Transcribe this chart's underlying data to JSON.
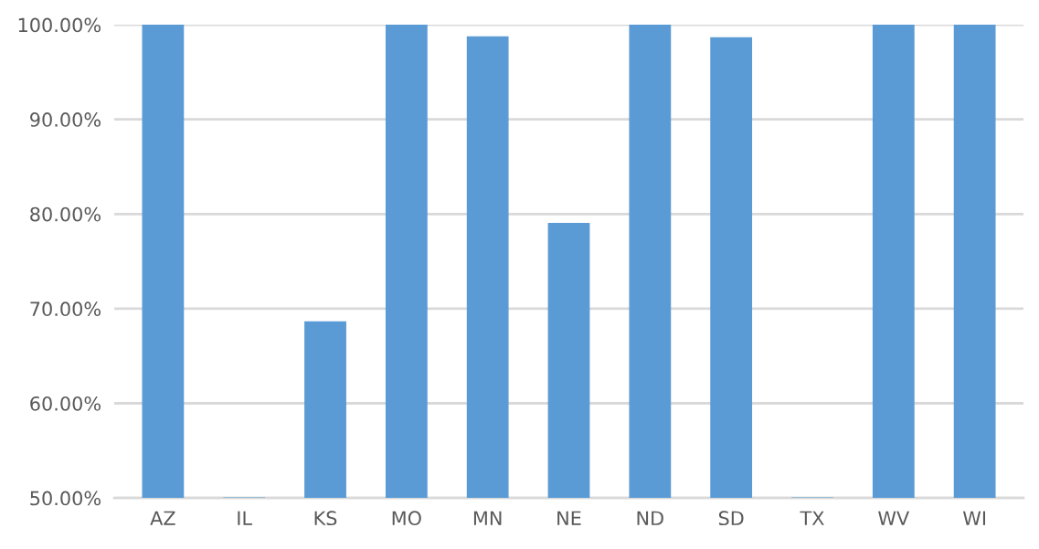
{
  "chart_data": {
    "type": "bar",
    "categories": [
      "AZ",
      "IL",
      "KS",
      "MO",
      "MN",
      "NE",
      "ND",
      "SD",
      "TX",
      "WV",
      "WI"
    ],
    "values": [
      100,
      50,
      68.6,
      100,
      98.7,
      79.0,
      100,
      98.6,
      50,
      100,
      100
    ],
    "color": "#5b9bd5",
    "ylim": [
      50,
      100
    ],
    "yticks": [
      {
        "value": 50,
        "label": "50.00%"
      },
      {
        "value": 60,
        "label": "60.00%"
      },
      {
        "value": 70,
        "label": "70.00%"
      },
      {
        "value": 80,
        "label": "80.00%"
      },
      {
        "value": 90,
        "label": "90.00%"
      },
      {
        "value": 100,
        "label": "100.00%"
      }
    ],
    "grid": "y"
  }
}
